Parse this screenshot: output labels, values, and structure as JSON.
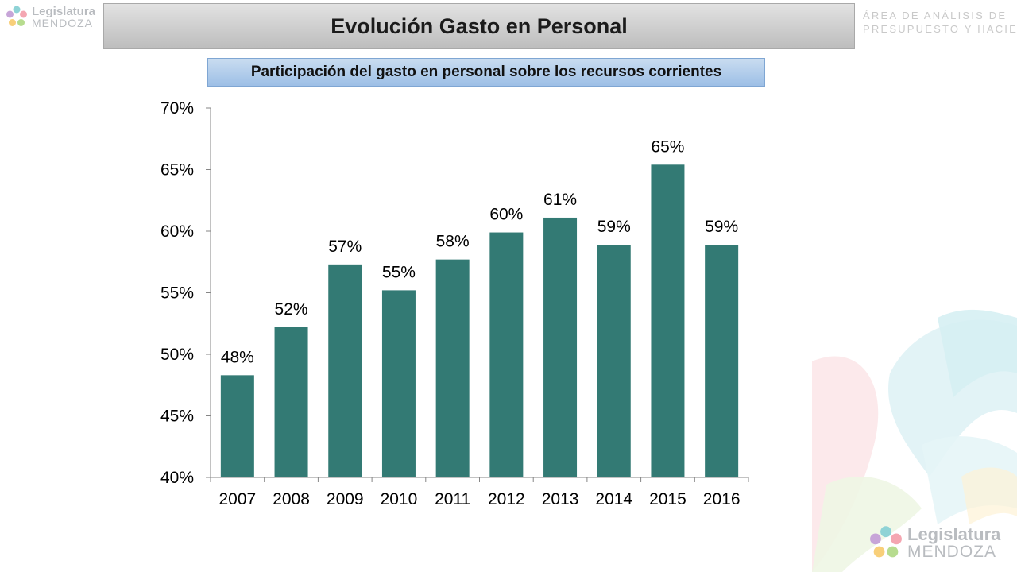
{
  "header": {
    "title": "Evolución Gasto en Personal",
    "area_line1": "ÁREA DE ANÁLISIS DE",
    "area_line2": "PRESUPUESTO Y HACIENDA"
  },
  "logo": {
    "line1": "Legislatura",
    "line2": "MENDOZA"
  },
  "chart_data": {
    "type": "bar",
    "title": "Participación del gasto en personal sobre los recursos corrientes",
    "xlabel": "",
    "ylabel": "",
    "categories": [
      "2007",
      "2008",
      "2009",
      "2010",
      "2011",
      "2012",
      "2013",
      "2014",
      "2015",
      "2016"
    ],
    "values": [
      0.483,
      0.522,
      0.573,
      0.552,
      0.577,
      0.599,
      0.611,
      0.589,
      0.654,
      0.589
    ],
    "data_labels": [
      "48%",
      "52%",
      "57%",
      "55%",
      "58%",
      "60%",
      "61%",
      "59%",
      "65%",
      "59%"
    ],
    "ylim": [
      0.4,
      0.7
    ],
    "yticks": [
      0.4,
      0.45,
      0.5,
      0.55,
      0.6,
      0.65,
      0.7
    ],
    "ytick_labels": [
      "40%",
      "45%",
      "50%",
      "55%",
      "60%",
      "65%",
      "70%"
    ],
    "bar_color": "#337a74",
    "grid": false,
    "legend": false
  }
}
